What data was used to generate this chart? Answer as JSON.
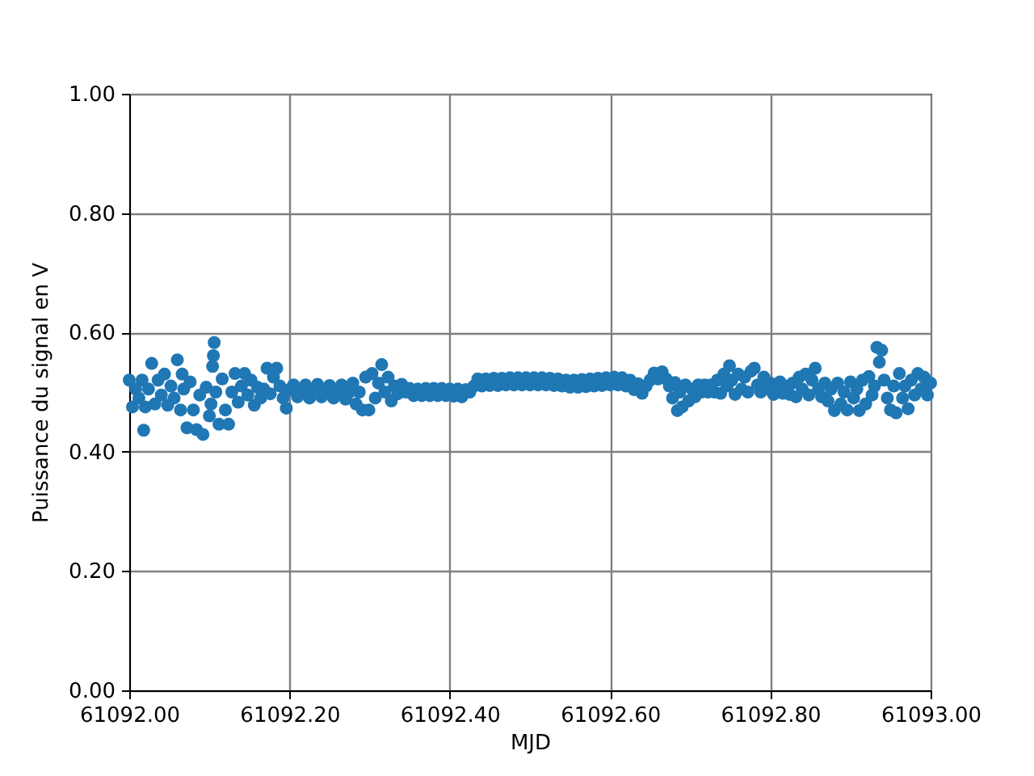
{
  "chart_data": {
    "type": "scatter",
    "xlabel": "MJD",
    "ylabel": "Puissance du signal en V",
    "x": [
      61092.0,
      61092.004,
      61092.008,
      61092.012,
      61092.016,
      61092.018,
      61092.02,
      61092.024,
      61092.028,
      61092.032,
      61092.036,
      61092.04,
      61092.044,
      61092.048,
      61092.052,
      61092.056,
      61092.06,
      61092.064,
      61092.066,
      61092.068,
      61092.072,
      61092.076,
      61092.08,
      61092.084,
      61092.088,
      61092.092,
      61092.096,
      61092.1,
      61092.102,
      61092.104,
      61092.105,
      61092.106,
      61092.108,
      61092.112,
      61092.116,
      61092.12,
      61092.124,
      61092.128,
      61092.132,
      61092.136,
      61092.14,
      61092.144,
      61092.148,
      61092.152,
      61092.156,
      61092.16,
      61092.164,
      61092.168,
      61092.172,
      61092.176,
      61092.18,
      61092.184,
      61092.188,
      61092.192,
      61092.196,
      61092.2,
      61092.205,
      61092.21,
      61092.215,
      61092.22,
      61092.225,
      61092.23,
      61092.235,
      61092.24,
      61092.245,
      61092.25,
      61092.255,
      61092.26,
      61092.265,
      61092.27,
      61092.275,
      61092.279,
      61092.283,
      61092.287,
      61092.291,
      61092.295,
      61092.299,
      61092.303,
      61092.307,
      61092.311,
      61092.315,
      61092.319,
      61092.323,
      61092.327,
      61092.331,
      61092.335,
      61092.34,
      61092.345,
      61092.35,
      61092.355,
      61092.36,
      61092.365,
      61092.37,
      61092.375,
      61092.38,
      61092.385,
      61092.39,
      61092.395,
      61092.4,
      61092.405,
      61092.41,
      61092.415,
      61092.42,
      61092.425,
      61092.43,
      61092.435,
      61092.44,
      61092.445,
      61092.45,
      61092.455,
      61092.46,
      61092.465,
      61092.47,
      61092.475,
      61092.48,
      61092.485,
      61092.49,
      61092.495,
      61092.5,
      61092.505,
      61092.51,
      61092.515,
      61092.52,
      61092.525,
      61092.53,
      61092.535,
      61092.54,
      61092.545,
      61092.55,
      61092.555,
      61092.56,
      61092.565,
      61092.57,
      61092.575,
      61092.58,
      61092.585,
      61092.59,
      61092.595,
      61092.6,
      61092.605,
      61092.61,
      61092.615,
      61092.62,
      61092.625,
      61092.63,
      61092.635,
      61092.64,
      61092.645,
      61092.65,
      61092.655,
      61092.66,
      61092.665,
      61092.67,
      61092.674,
      61092.678,
      61092.681,
      61092.684,
      61092.687,
      61092.69,
      61092.694,
      61092.698,
      61092.702,
      61092.706,
      61092.71,
      61092.714,
      61092.718,
      61092.722,
      61092.726,
      61092.73,
      61092.734,
      61092.738,
      61092.742,
      61092.746,
      61092.749,
      61092.752,
      61092.756,
      61092.76,
      61092.764,
      61092.768,
      61092.772,
      61092.776,
      61092.78,
      61092.784,
      61092.788,
      61092.792,
      61092.796,
      61092.8,
      61092.804,
      61092.808,
      61092.812,
      61092.816,
      61092.82,
      61092.824,
      61092.828,
      61092.832,
      61092.836,
      61092.84,
      61092.844,
      61092.848,
      61092.852,
      61092.856,
      61092.86,
      61092.864,
      61092.868,
      61092.872,
      61092.876,
      61092.88,
      61092.884,
      61092.888,
      61092.892,
      61092.896,
      61092.9,
      61092.904,
      61092.908,
      61092.911,
      61092.915,
      61092.919,
      61092.923,
      61092.927,
      61092.93,
      61092.933,
      61092.936,
      61092.939,
      61092.942,
      61092.946,
      61092.95,
      61092.954,
      61092.957,
      61092.961,
      61092.965,
      61092.968,
      61092.972,
      61092.976,
      61092.98,
      61092.984,
      61092.988,
      61092.992,
      61092.996,
      61093.0
    ],
    "series": [
      {
        "color": "#1f77b4",
        "values": [
          0.52,
          0.475,
          0.505,
          0.49,
          0.52,
          0.436,
          0.475,
          0.505,
          0.548,
          0.48,
          0.52,
          0.495,
          0.53,
          0.478,
          0.51,
          0.49,
          0.554,
          0.47,
          0.53,
          0.505,
          0.44,
          0.517,
          0.47,
          0.437,
          0.495,
          0.429,
          0.508,
          0.46,
          0.48,
          0.543,
          0.561,
          0.583,
          0.5,
          0.446,
          0.522,
          0.47,
          0.446,
          0.5,
          0.531,
          0.483,
          0.51,
          0.531,
          0.495,
          0.52,
          0.478,
          0.508,
          0.49,
          0.505,
          0.54,
          0.497,
          0.525,
          0.54,
          0.51,
          0.49,
          0.473,
          0.504,
          0.512,
          0.492,
          0.503,
          0.512,
          0.49,
          0.505,
          0.513,
          0.492,
          0.5,
          0.511,
          0.49,
          0.502,
          0.512,
          0.488,
          0.5,
          0.515,
          0.48,
          0.5,
          0.47,
          0.525,
          0.47,
          0.531,
          0.49,
          0.515,
          0.546,
          0.5,
          0.525,
          0.485,
          0.51,
          0.497,
          0.513,
          0.5,
          0.506,
          0.494,
          0.505,
          0.494,
          0.506,
          0.494,
          0.506,
          0.494,
          0.506,
          0.494,
          0.505,
          0.493,
          0.505,
          0.492,
          0.504,
          0.5,
          0.51,
          0.522,
          0.51,
          0.522,
          0.511,
          0.523,
          0.511,
          0.523,
          0.512,
          0.524,
          0.512,
          0.524,
          0.512,
          0.524,
          0.512,
          0.524,
          0.512,
          0.524,
          0.512,
          0.523,
          0.511,
          0.522,
          0.51,
          0.52,
          0.508,
          0.52,
          0.508,
          0.521,
          0.509,
          0.522,
          0.51,
          0.523,
          0.511,
          0.524,
          0.512,
          0.525,
          0.512,
          0.524,
          0.51,
          0.52,
          0.504,
          0.514,
          0.498,
          0.51,
          0.52,
          0.532,
          0.522,
          0.534,
          0.522,
          0.51,
          0.49,
          0.516,
          0.469,
          0.5,
          0.475,
          0.512,
          0.485,
          0.505,
          0.492,
          0.512,
          0.5,
          0.512,
          0.5,
          0.512,
          0.5,
          0.52,
          0.498,
          0.53,
          0.51,
          0.544,
          0.52,
          0.496,
          0.53,
          0.505,
          0.525,
          0.5,
          0.535,
          0.54,
          0.512,
          0.5,
          0.525,
          0.505,
          0.515,
          0.496,
          0.508,
          0.517,
          0.498,
          0.51,
          0.496,
          0.515,
          0.492,
          0.525,
          0.505,
          0.53,
          0.495,
          0.52,
          0.54,
          0.505,
          0.492,
          0.515,
          0.485,
          0.505,
          0.469,
          0.515,
          0.48,
          0.5,
          0.47,
          0.517,
          0.49,
          0.505,
          0.469,
          0.52,
          0.48,
          0.526,
          0.495,
          0.51,
          0.575,
          0.55,
          0.57,
          0.52,
          0.49,
          0.47,
          0.51,
          0.465,
          0.531,
          0.49,
          0.51,
          0.472,
          0.52,
          0.495,
          0.531,
          0.505,
          0.525,
          0.495,
          0.515
        ]
      }
    ],
    "xlim": [
      61092.0,
      61093.0
    ],
    "xticks": [
      {
        "value": 61092.0,
        "label": "61092.00"
      },
      {
        "value": 61092.2,
        "label": "61092.20"
      },
      {
        "value": 61092.4,
        "label": "61092.40"
      },
      {
        "value": 61092.6,
        "label": "61092.60"
      },
      {
        "value": 61092.8,
        "label": "61092.80"
      },
      {
        "value": 61093.0,
        "label": "61093.00"
      }
    ],
    "ylim": [
      0,
      1
    ],
    "yticks": [
      {
        "value": 0,
        "label": "0.00"
      },
      {
        "value": 0.2,
        "label": "0.20"
      },
      {
        "value": 0.4,
        "label": "0.40"
      },
      {
        "value": 0.6,
        "label": "0.60"
      },
      {
        "value": 0.8,
        "label": "0.80"
      },
      {
        "value": 1,
        "label": "1.00"
      }
    ],
    "grid": true,
    "marker": "circle"
  }
}
